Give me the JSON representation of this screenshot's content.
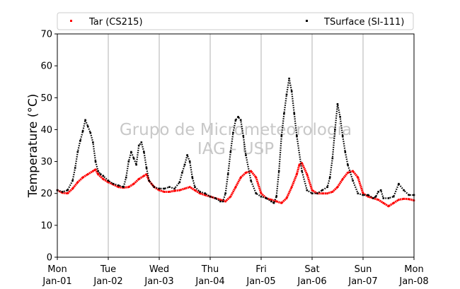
{
  "chart_data": {
    "type": "scatter",
    "title": "",
    "ylabel": "Temperature (°C)",
    "xlabel": "",
    "ylim": [
      0,
      70
    ],
    "yticks": [
      0,
      10,
      20,
      30,
      40,
      50,
      60,
      70
    ],
    "xlim": [
      0,
      7
    ],
    "xticks": [
      {
        "x": 0,
        "day": "Mon",
        "date": "Jan-01"
      },
      {
        "x": 1,
        "day": "Tue",
        "date": "Jan-02"
      },
      {
        "x": 2,
        "day": "Wed",
        "date": "Jan-03"
      },
      {
        "x": 3,
        "day": "Thu",
        "date": "Jan-04"
      },
      {
        "x": 4,
        "day": "Fri",
        "date": "Jan-05"
      },
      {
        "x": 5,
        "day": "Sat",
        "date": "Jan-06"
      },
      {
        "x": 6,
        "day": "Sun",
        "date": "Jan-07"
      },
      {
        "x": 7,
        "day": "Mon",
        "date": "Jan-08"
      }
    ],
    "grid": "vertical",
    "legend": "top",
    "watermark": [
      "Grupo de Micrometeorologia",
      "IAG - USP"
    ],
    "series": [
      {
        "name": "Tar (CS215)",
        "color": "#ff0000",
        "x": [
          0.0,
          0.1,
          0.2,
          0.3,
          0.4,
          0.5,
          0.6,
          0.7,
          0.75,
          0.8,
          0.9,
          1.0,
          1.1,
          1.2,
          1.3,
          1.4,
          1.5,
          1.6,
          1.7,
          1.75,
          1.8,
          1.9,
          2.0,
          2.1,
          2.2,
          2.3,
          2.4,
          2.5,
          2.6,
          2.7,
          2.8,
          2.9,
          3.0,
          3.1,
          3.2,
          3.3,
          3.4,
          3.5,
          3.6,
          3.7,
          3.8,
          3.9,
          4.0,
          4.1,
          4.2,
          4.3,
          4.4,
          4.5,
          4.6,
          4.7,
          4.75,
          4.8,
          4.9,
          5.0,
          5.1,
          5.2,
          5.3,
          5.4,
          5.5,
          5.6,
          5.7,
          5.8,
          5.9,
          6.0,
          6.1,
          6.2,
          6.3,
          6.4,
          6.5,
          6.6,
          6.7,
          6.8,
          6.9,
          7.0
        ],
        "y": [
          21,
          20.2,
          20,
          21.5,
          23.5,
          25,
          26,
          27,
          27.5,
          26,
          24.5,
          23.5,
          22.8,
          22,
          21.8,
          22,
          23,
          24.5,
          25.5,
          26,
          24,
          22,
          21,
          20.5,
          20.5,
          20.8,
          21,
          21.5,
          22,
          21,
          20,
          19.5,
          19,
          18.5,
          18,
          17.5,
          19,
          22,
          25,
          26.5,
          27,
          25,
          20,
          18.5,
          18,
          17.5,
          17,
          18.5,
          22,
          26,
          29,
          29.5,
          26,
          21,
          20,
          20,
          20,
          20.5,
          22,
          24.5,
          26.5,
          27,
          25,
          20,
          19,
          18.5,
          18,
          17,
          16,
          17,
          18,
          18.3,
          18.2,
          17.8
        ]
      },
      {
        "name": "TSurface (SI-111)",
        "color": "#000000",
        "x": [
          0.0,
          0.1,
          0.2,
          0.3,
          0.35,
          0.4,
          0.45,
          0.5,
          0.55,
          0.6,
          0.65,
          0.7,
          0.75,
          0.8,
          0.85,
          0.9,
          1.0,
          1.1,
          1.2,
          1.3,
          1.35,
          1.4,
          1.45,
          1.5,
          1.55,
          1.6,
          1.65,
          1.7,
          1.75,
          1.8,
          1.9,
          2.0,
          2.1,
          2.2,
          2.3,
          2.4,
          2.45,
          2.5,
          2.55,
          2.6,
          2.65,
          2.7,
          2.8,
          2.9,
          3.0,
          3.1,
          3.2,
          3.25,
          3.3,
          3.35,
          3.4,
          3.45,
          3.5,
          3.55,
          3.6,
          3.65,
          3.7,
          3.8,
          3.9,
          4.0,
          4.1,
          4.2,
          4.25,
          4.3,
          4.35,
          4.4,
          4.45,
          4.5,
          4.55,
          4.6,
          4.65,
          4.7,
          4.8,
          4.9,
          5.0,
          5.1,
          5.2,
          5.3,
          5.35,
          5.4,
          5.45,
          5.5,
          5.55,
          5.6,
          5.65,
          5.7,
          5.8,
          5.9,
          6.0,
          6.1,
          6.2,
          6.25,
          6.3,
          6.35,
          6.4,
          6.5,
          6.6,
          6.7,
          6.8,
          6.9,
          7.0
        ],
        "y": [
          21,
          20.5,
          21,
          24,
          28,
          33,
          36.5,
          39.5,
          43,
          41,
          39,
          36,
          30,
          27,
          26,
          25.5,
          24,
          23,
          22.5,
          22,
          25,
          30,
          33,
          31,
          29,
          35,
          36,
          33,
          28,
          24,
          22,
          21.5,
          21.5,
          22,
          21.5,
          23.5,
          26.5,
          29,
          32,
          30,
          25,
          22,
          20.5,
          20,
          19,
          18.5,
          17.5,
          17.5,
          20,
          26,
          33,
          39,
          43,
          44,
          43,
          38,
          32,
          24,
          20,
          19,
          18.5,
          17.5,
          17,
          19,
          27,
          38,
          45,
          51,
          56,
          52,
          45,
          38,
          27,
          21,
          20,
          20,
          21,
          22,
          25,
          31,
          40,
          48,
          44,
          38,
          33,
          29,
          24,
          20,
          19.5,
          19.5,
          18.5,
          19,
          20.5,
          21,
          18.5,
          18.5,
          19,
          23,
          21,
          19.5,
          19.5
        ]
      }
    ]
  }
}
